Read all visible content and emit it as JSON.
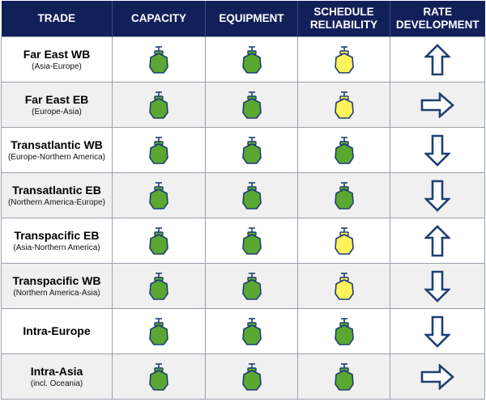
{
  "colors": {
    "header_bg": "#12205a",
    "ship_green": "#5aa832",
    "ship_yellow": "#fff35c",
    "ship_outline": "#1f3f73",
    "arrow_outline": "#1f3f73"
  },
  "header": {
    "trade": "TRADE",
    "capacity": "CAPACITY",
    "equipment": "EQUIPMENT",
    "schedule_line1": "SCHEDULE",
    "schedule_line2": "RELIABILITY",
    "rate_line1": "RATE",
    "rate_line2": "DEVELOPMENT"
  },
  "rows": [
    {
      "name": "Far East WB",
      "sub": "(Asia-Europe)",
      "capacity": "green",
      "equipment": "green",
      "schedule": "yellow",
      "rate": "up"
    },
    {
      "name": "Far East EB",
      "sub": "(Europe-Asia)",
      "capacity": "green",
      "equipment": "green",
      "schedule": "yellow",
      "rate": "right"
    },
    {
      "name": "Transatlantic WB",
      "sub": "(Europe-Northern America)",
      "capacity": "green",
      "equipment": "green",
      "schedule": "green",
      "rate": "down"
    },
    {
      "name": "Transatlantic EB",
      "sub": "(Northern America-Europe)",
      "capacity": "green",
      "equipment": "green",
      "schedule": "green",
      "rate": "down"
    },
    {
      "name": "Transpacific EB",
      "sub": "(Asia-Northern America)",
      "capacity": "green",
      "equipment": "green",
      "schedule": "yellow",
      "rate": "up"
    },
    {
      "name": "Transpacific WB",
      "sub": "(Northern America-Asia)",
      "capacity": "green",
      "equipment": "green",
      "schedule": "yellow",
      "rate": "down"
    },
    {
      "name": "Intra-Europe",
      "sub": "",
      "capacity": "green",
      "equipment": "green",
      "schedule": "green",
      "rate": "down"
    },
    {
      "name": "Intra-Asia",
      "sub": "(incl. Oceania)",
      "capacity": "green",
      "equipment": "green",
      "schedule": "green",
      "rate": "right"
    }
  ]
}
